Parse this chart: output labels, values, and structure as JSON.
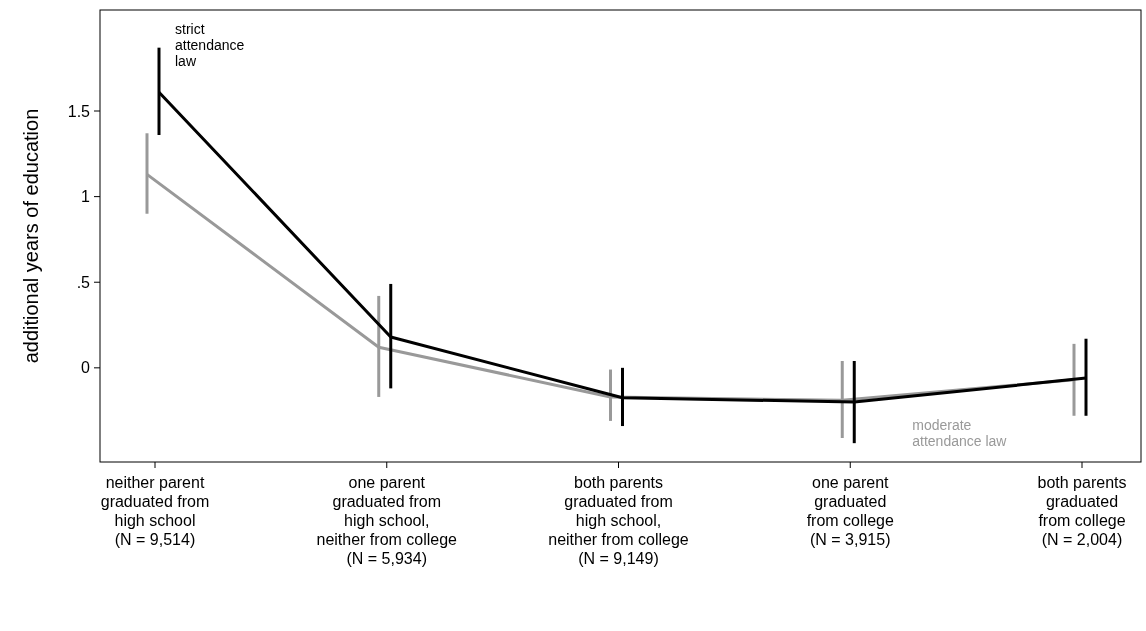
{
  "chart_data": {
    "type": "line",
    "ylabel": "additional years of education",
    "categories": [
      "neither parent\ngraduated from\nhigh school\n(N = 9,514)",
      "one parent\ngraduated from\nhigh school,\nneither from college\n(N = 5,934)",
      "both parents\ngraduated from\nhigh school,\nneither from college\n(N = 9,149)",
      "one parent\ngraduated\nfrom college\n(N = 3,915)",
      "both parents\ngraduated\nfrom college\n(N = 2,004)"
    ],
    "series": [
      {
        "name": "moderate attendance law",
        "color": "#999999",
        "values": [
          1.13,
          0.12,
          -0.17,
          -0.19,
          -0.07
        ],
        "errors": [
          [
            0.9,
            1.37
          ],
          [
            -0.17,
            0.42
          ],
          [
            -0.31,
            -0.01
          ],
          [
            -0.41,
            0.04
          ],
          [
            -0.28,
            0.14
          ]
        ]
      },
      {
        "name": "strict attendance law",
        "color": "#000000",
        "values": [
          1.61,
          0.18,
          -0.175,
          -0.2,
          -0.06
        ],
        "errors": [
          [
            1.36,
            1.87
          ],
          [
            -0.12,
            0.49
          ],
          [
            -0.34,
            0
          ],
          [
            -0.44,
            0.04
          ],
          [
            -0.28,
            0.17
          ]
        ]
      }
    ],
    "ylim": [
      -0.55,
      2.09
    ],
    "yticks": [
      0,
      {
        "value": 0.5,
        "label": ".5"
      },
      1,
      1.5
    ],
    "grid": false,
    "marker": "none",
    "line_style": "solid"
  }
}
